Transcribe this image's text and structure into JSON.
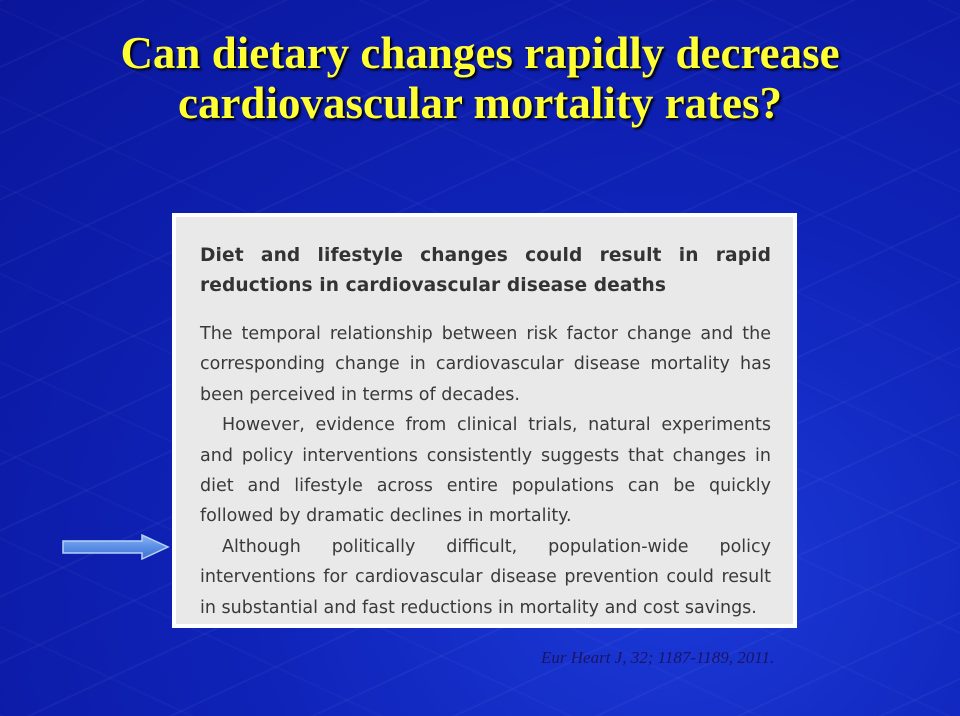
{
  "slide": {
    "title_line1": "Can dietary changes rapidly decrease",
    "title_line2": "cardiovascular mortality rates?"
  },
  "article": {
    "heading": "Diet and lifestyle changes could result in rapid reductions in cardiovascular disease deaths",
    "paragraphs": [
      "The temporal relationship between risk factor change and the corresponding change in cardiovascular disease mortality has been perceived in terms of decades.",
      "However, evidence from clinical trials, natural experiments and policy interventions consistently suggests that changes in diet and lifestyle across entire populations can be quickly followed by dramatic declines in mortality.",
      "Although politically difficult, population-wide policy interventions for cardiovascular disease prevention could result in substantial and fast reductions in mortality and cost savings."
    ]
  },
  "arrow": {
    "icon": "right-arrow-icon",
    "fill": "#5b8fe6",
    "stroke": "#9fc0f2"
  },
  "citation": "Eur Heart J, 32; 1187-1189, 2011.",
  "colors": {
    "background": "#0f23b8",
    "title": "#ffff33",
    "citation": "#1a1466",
    "article_bg": "#e9e9e9"
  }
}
